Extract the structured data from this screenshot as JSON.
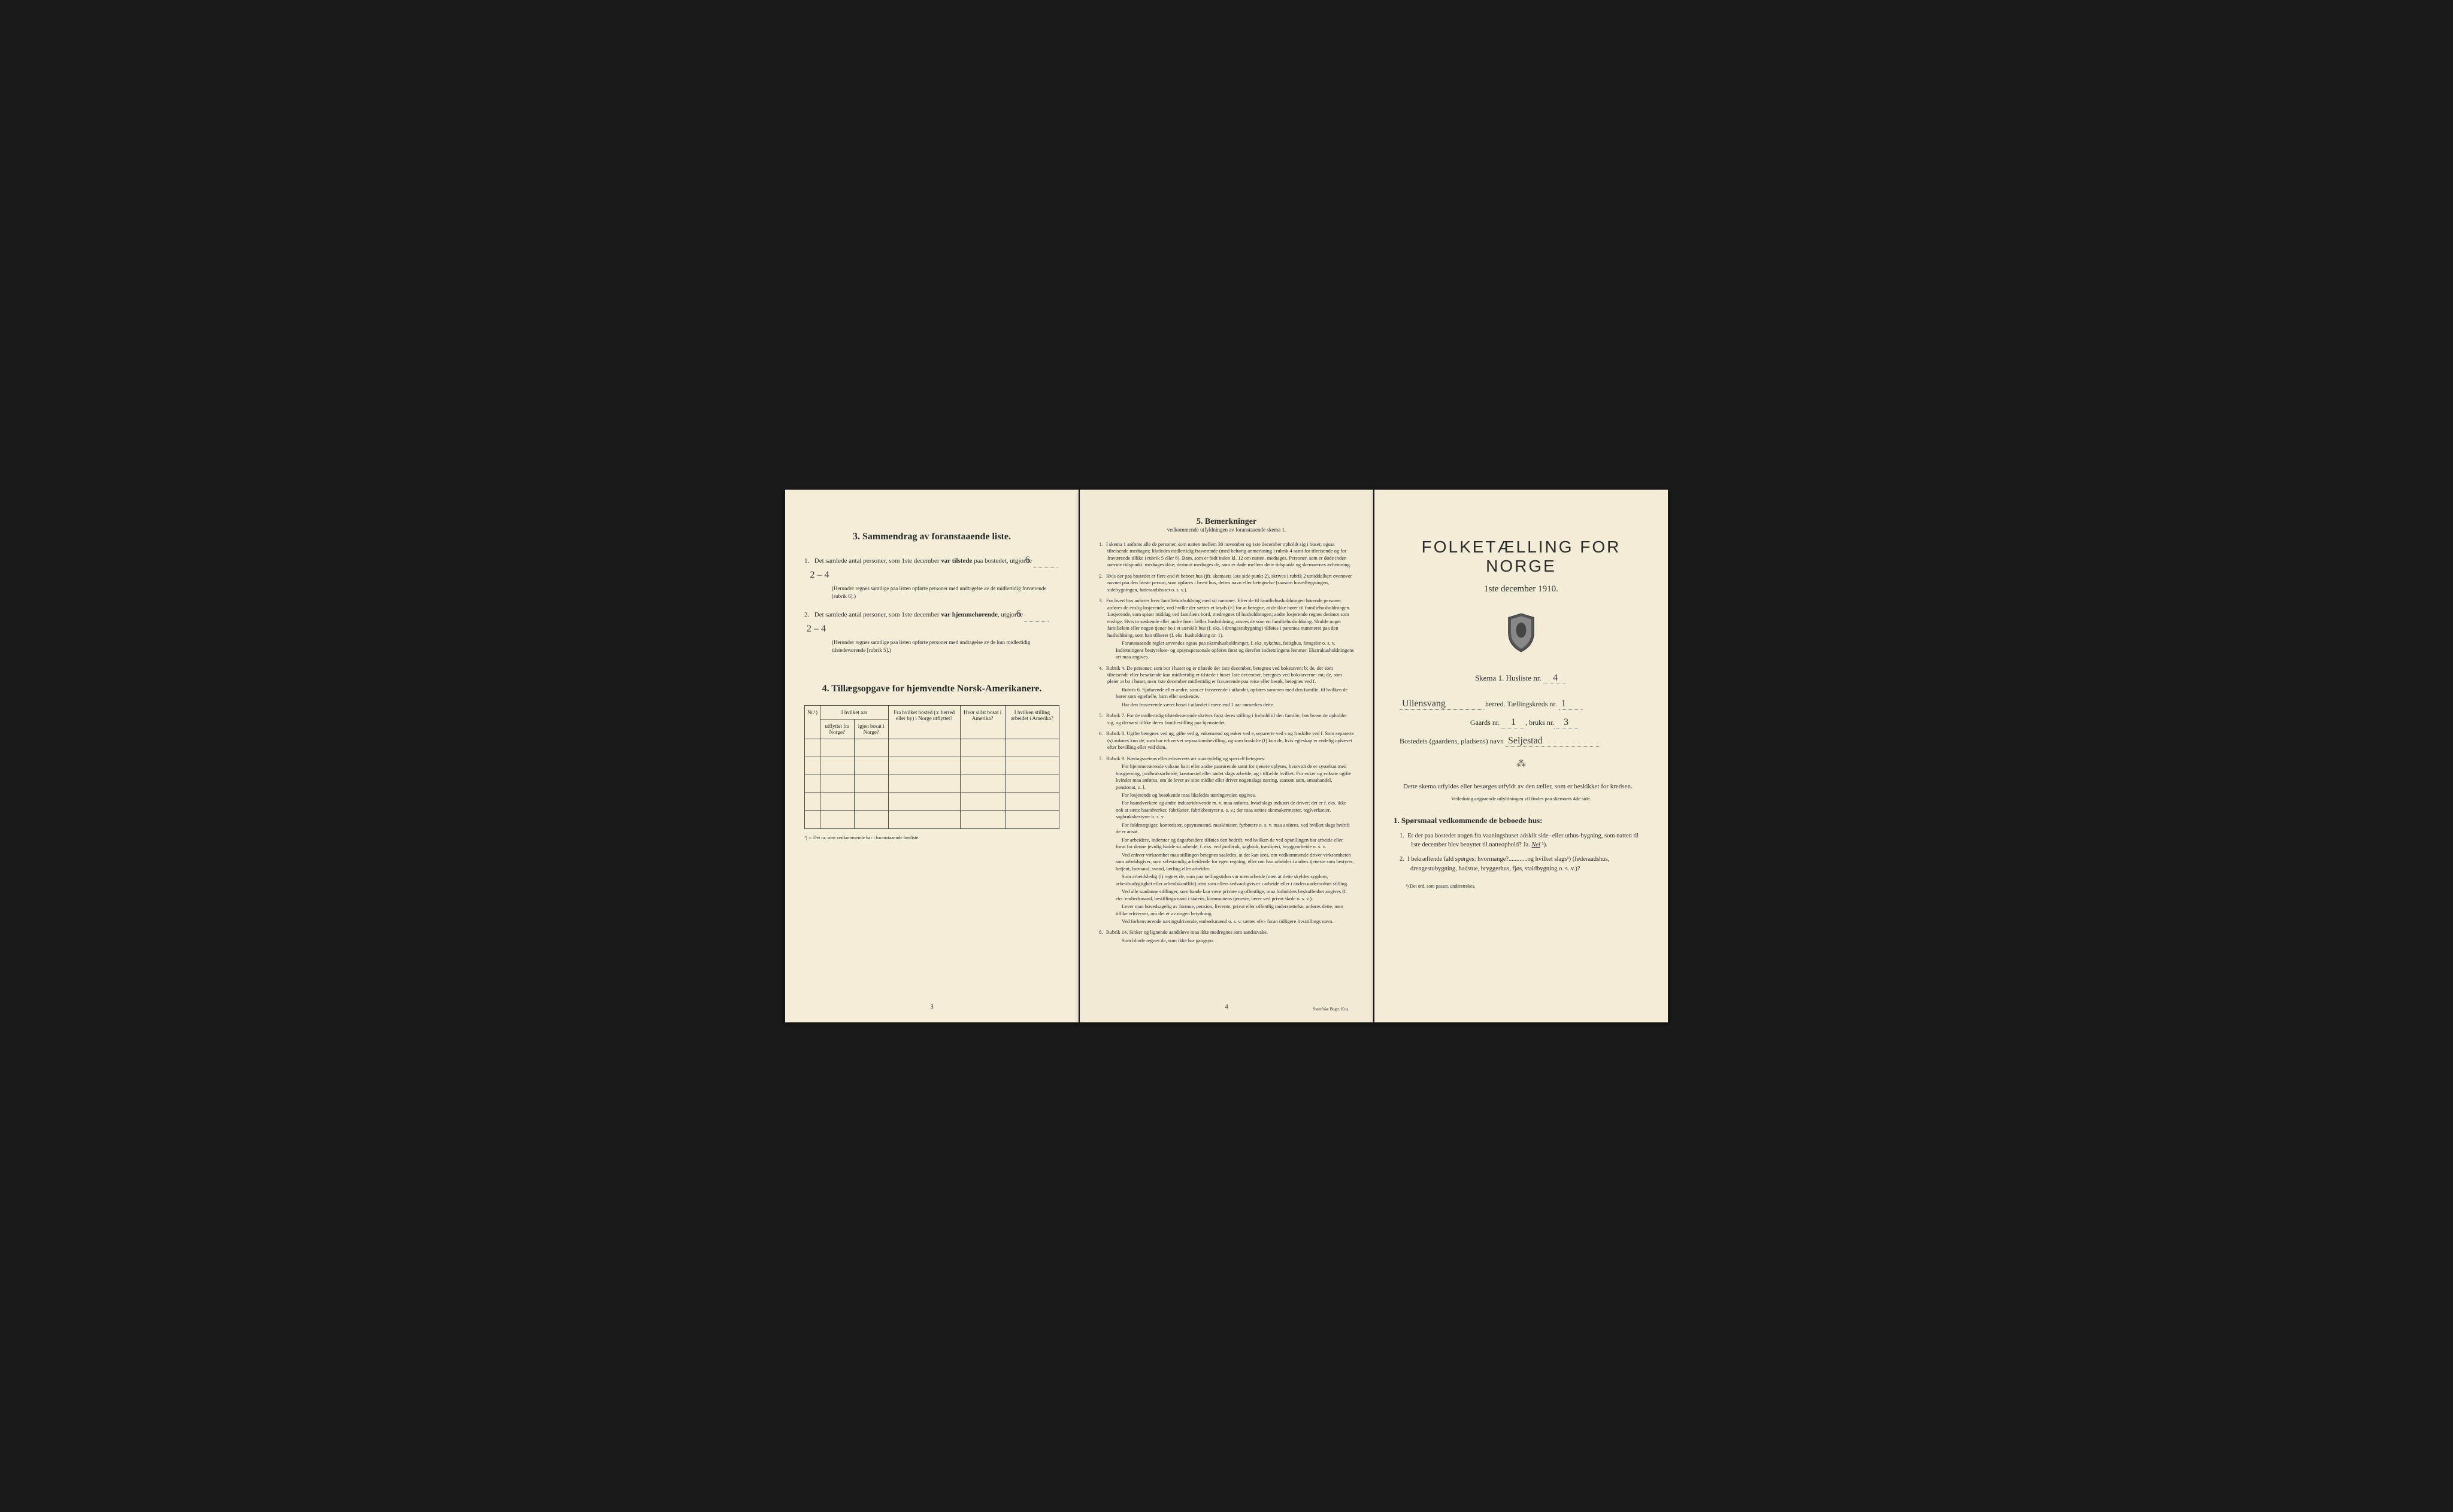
{
  "page1": {
    "section3_title": "3.   Sammendrag av foranstaaende liste.",
    "item1_pre": "Det samlede antal personer, som 1ste december ",
    "item1_bold": "var tilstede",
    "item1_post": " paa bostedet, utgjorde ",
    "item1_val": "6",
    "item1_extra": "2 – 4",
    "item1_note": "(Herunder regnes samtlige paa listen opførte personer med undtagelse av de midlertidig fraværende [rubrik 6].)",
    "item2_pre": "Det samlede antal personer, som 1ste december ",
    "item2_bold": "var hjemmehørende",
    "item2_post": ", utgjorde ",
    "item2_val": "6",
    "item2_extra": "2 – 4",
    "item2_note": "(Herunder regnes samtlige paa listen opførte personer med undtagelse av de kun midlertidig tilstedeværende [rubrik 5].)",
    "section4_title": "4.   Tillægsopgave for hjemvendte Norsk-Amerikanere.",
    "col_nr": "Nr.¹)",
    "col_a_top": "I hvilket aar",
    "col_a1": "utflyttet fra Norge?",
    "col_a2": "igjen bosat i Norge?",
    "col_b": "Fra hvilket bosted (ɔ: herred eller by) i Norge utflyttet?",
    "col_c": "Hvor sidst bosat i Amerika?",
    "col_d": "I hvilken stilling arbeidet i Amerika?",
    "footnote": "¹) ɔ: Det nr. som vedkommende har i foranstaaende husliste.",
    "page_num": "3"
  },
  "page2": {
    "title": "5.   Bemerkninger",
    "subtitle": "vedkommende utfyldningen av foranstaaende skema 1.",
    "items": [
      {
        "n": "1.",
        "text": "I skema 1 anføres alle de personer, som natten mellem 30 november og 1ste december opholdt sig i huset; ogsaa tilreisende medtages; likeledes midlertidig fraværende (med behørig anmerkning i rubrik 4 samt for tilreisende og for fraværende tillike i rubrik 5 eller 6). Barn, som er født inden kl. 12 om natten, medtages. Personer, som er døde inden nævnte tidspunkt, medtages ikke; derimot medtages de, som er døde mellem dette tidspunkt og skemaernes avhentning."
      },
      {
        "n": "2.",
        "text": "Hvis der paa bostedet er flere end ét beboet hus (jfr. skemaets 1ste side punkt 2), skrives i rubrik 2 umiddelbart ovenover navnet paa den første person, som opføres i hvert hus, dettes navn eller betegnelse (saasom hovedbygningen, sidebygningen, føderaadshuset o. s. v.)."
      },
      {
        "n": "3.",
        "text": "For hvert hus anføres hver familiehusholdning med sit nummer. Efter de til familiehusholdningen hørende personer anføres de enslig losjerende, ved hvilke der sættes et kryds (×) for at betegne, at de ikke hører til familiehusholdningen. Losjerende, som spiser middag ved familiens bord, medregnes til husholdningen; andre losjerende regnes derimot som enslige. Hvis to søskende eller andre fører fælles husholdning, ansees de som en familiehusholdning. Skulde noget familielem eller nogen tjener bo i et særskilt hus (f. eks. i drengestubygning) tilføies i parentes nummeret paa den husholdning, som han tilhører (f. eks. husholdning nr. 1).",
        "paras": [
          "Foranstaaende regler anvendes ogsaa paa ekstrahusholdninger, f. eks. sykehus, fattighus, fængsler o. s. v. Indretningens bestyrelses- og opsynspersonale opføres først og derefter indretningens lemmer. Ekstrahusholdningens art maa angives."
        ]
      },
      {
        "n": "4.",
        "text": "Rubrik 4. De personer, som bor i huset og er tilstede der 1ste december, betegnes ved bokstaven: b; de, der som tilreisende eller besøkende kun midlertidig er tilstede i huset 1ste december, betegnes ved bokstaverne: mt; de, som pleier at bo i huset, men 1ste december midlertidig er fraværende paa reise eller besøk, betegnes ved f.",
        "paras": [
          "Rubrik 6. Sjøfarende eller andre, som er fraværende i utlandet, opføres sammen med den familie, til hvilken de hører som egtefælle, barn eller søskende.",
          "Har den fraværende været bosat i utlandet i mere end 1 aar anmerkes dette."
        ]
      },
      {
        "n": "5.",
        "text": "Rubrik 7. For de midlertidig tilstedeværende skrives først deres stilling i forhold til den familie, hos hvem de opholder sig, og dernæst tillike deres familiestilling paa hjemstedet."
      },
      {
        "n": "6.",
        "text": "Rubrik 8. Ugifte betegnes ved ug, gifte ved g, enkemænd og enker ved e, separerte ved s og fraskilte ved f. Som separerte (s) anføres kun de, som har erhvervet separationsbevilling, og som fraskilte (f) kun de, hvis egteskap er endelig ophævet efter bevilling eller ved dom."
      },
      {
        "n": "7.",
        "text": "Rubrik 9. Næringsveiens eller erhvervets art maa tydelig og specielt betegnes.",
        "paras": [
          "For hjemmeværende voksne barn eller andre paarørende samt for tjenere oplyses, hvorvidt de er sysselsat med husgjerning, jordbruksarbeide, kreaturstel eller andet slags arbeide, og i tilfælde hvilket. For enker og voksne ugifte kvinder maa anføres, om de lever av sine midler eller driver nogenslags næring, saasom søm, smaahandel, pensionat, o. l.",
          "For losjerende og besøkende maa likeledes næringsveien opgives.",
          "For haandverkere og andre industridrivende m. v. maa anføres, hvad slags industri de driver; det er f. eks. ikke nok at sætte haandverker, fabrikeier, fabrikbestyrer o. s. v.; der maa sættes skomakermester, teglverkseier, sagbruksbestyrer o. s. v.",
          "For fuldmægtiger, kontorister, opsynsmænd, maskinister, fyrbøtere o. s. v. maa anføres, ved hvilket slags bedrift de er ansat.",
          "For arbeidere, inderster og dagarbeidere tilføies den bedrift, ved hvilken de ved optællingen har arbeide eller forut for denne jevnlig hadde sit arbeide, f. eks. ved jordbruk, sagbruk, træsliperi, bryggearbeide o. s. v.",
          "Ved enhver virksomhet maa stillingen betegnes saaledes, at det kan sees, om vedkommende driver virksomheten som arbeidsgiver, som selvstændig arbeidende for egen regning, eller om han arbeider i andres tjeneste som bestyrer, betjent, formand, svend, lærling eller arbeider.",
          "Som arbeidsledig (l) regnes de, som paa tællingstiden var uten arbeide (uten at dette skyldes sygdom, arbeidsudygtighet eller arbeidskonflikt) men som ellers sedvanligvis er i arbeide eller i anden underordnet stilling.",
          "Ved alle saadanne stillinger, som baade kan være private og offentlige, maa forholdets beskaffenhet angives (f. eks. embedsmand, bestillingsmand i statens, kommunens tjeneste, lærer ved privat skole o. s. v.).",
          "Lever man hovedsagelig av formue, pension, livrente, privat eller offentlig understøttelse, anføres dette, men tillike erhvervet, om det er av nogen betydning.",
          "Ved forhenværende næringsdrivende, embedsmænd o. s. v. sættes «fv» foran tidligere livsstillings navn."
        ]
      },
      {
        "n": "8.",
        "text": "Rubrik 14. Sinker og lignende aandsløve maa ikke medregnes som aandssvake.",
        "paras": [
          "Som blinde regnes de, som ikke har gangsyn."
        ]
      }
    ],
    "page_num": "4",
    "printer": "Steen'ske Bogtr. Kr.a."
  },
  "page3": {
    "main_title": "FOLKETÆLLING FOR NORGE",
    "date": "1ste december 1910.",
    "skema_pre": "Skema 1.   Husliste nr. ",
    "skema_val": "4",
    "herred_val": "Ullensvang",
    "herred_post": " herred.   Tællingskreds nr. ",
    "kreds_val": "1",
    "gaard_pre": "Gaards nr. ",
    "gaard_val": "1",
    "bruks_pre": ", bruks nr.",
    "bruks_val": "3",
    "bosted_pre": "Bostedets (gaardens, pladsens) navn ",
    "bosted_val": "Seljestad",
    "fill_note": "Dette skema utfyldes eller besørges utfyldt av den tæller, som er beskikket for kredsen.",
    "fill_sub": "Veiledning angaaende utfyldningen vil findes paa skemaets 4de side.",
    "q_heading": "1. Spørsmaal vedkommende de beboede hus:",
    "q1": "Er der paa bostedet nogen fra vaaningshuset adskilt side- eller uthus-bygning, som natten til 1ste december blev benyttet til natteophold?   Ja.   ",
    "q1_ans": "Nei",
    "q1_sup": " ¹).",
    "q2": "I bekræftende fald spørges: hvormange?............og hvilket slags¹) (føderaadshus, drengestubygning, badstue, bryggerhus, fjøs, staldbygning o. s. v.)?",
    "foot": "¹) Det ord, som passer, understrekes."
  }
}
